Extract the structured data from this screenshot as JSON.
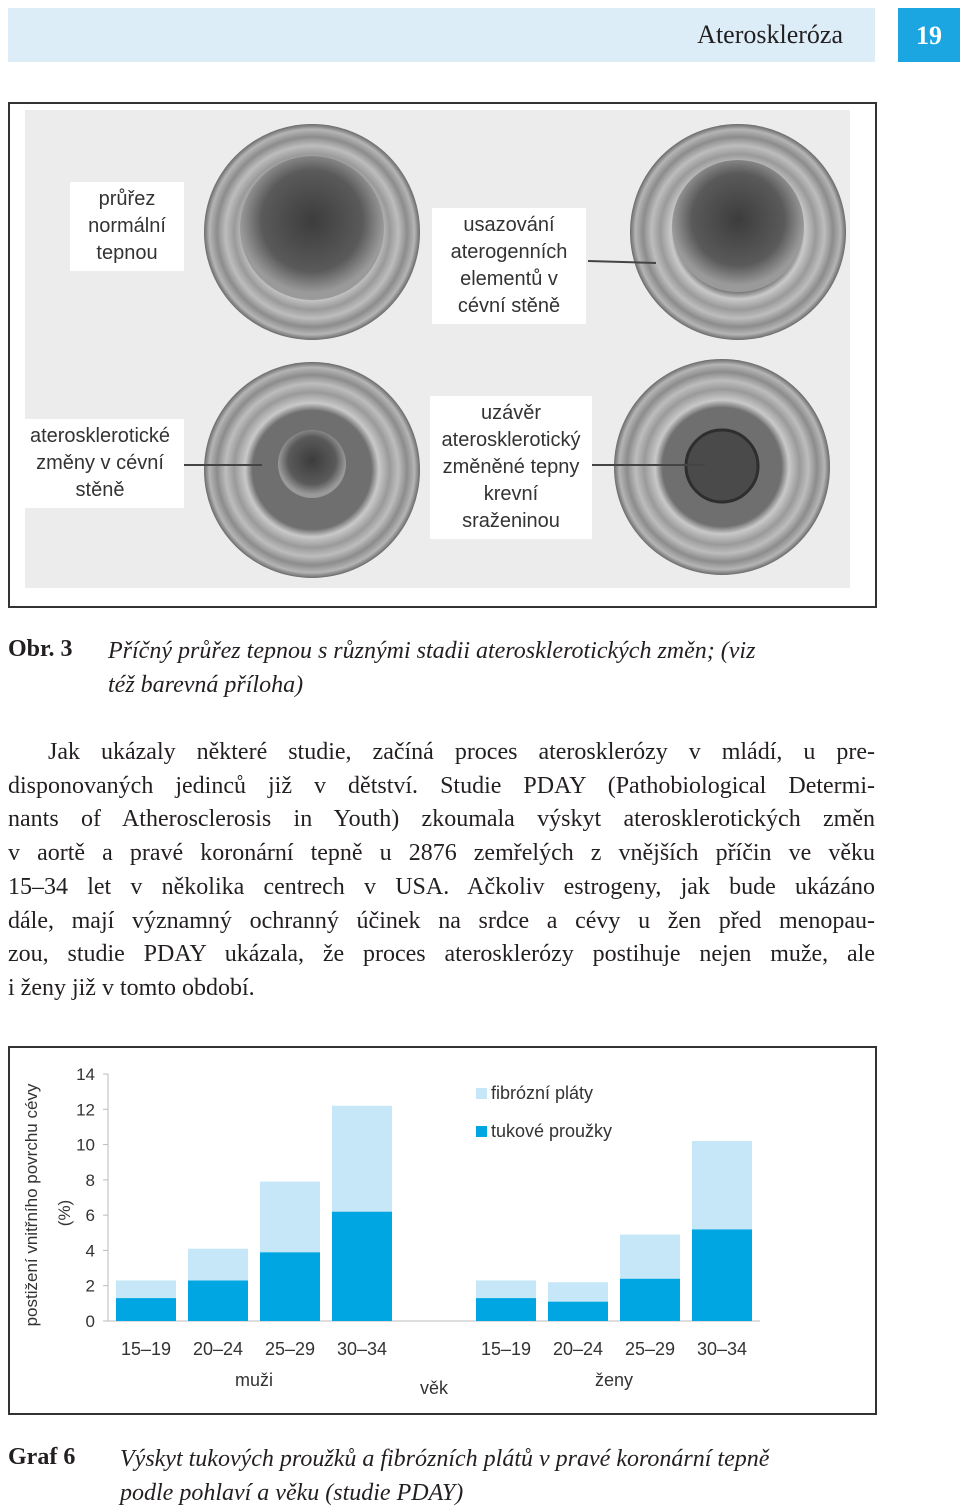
{
  "header": {
    "title": "Ateroskleróza",
    "page_number": "19"
  },
  "figure": {
    "labels": [
      "průřez normální tepnou",
      "usazování aterogenních elementů v cévní stěně",
      "aterosklerotické změny v cévní stěně",
      "uzávěr aterosklerotický změněné tepny krevní sraženinou"
    ],
    "caption_number": "Obr. 3",
    "caption_lines": [
      "Příčný průřez tepnou s různými stadii aterosklerotických změn; (viz",
      "též barevná příloha)"
    ]
  },
  "paragraph": {
    "lines": [
      "Jak ukázaly některé studie, začíná proces aterosklerózy v mládí, u pre-",
      "disponovaných jedinců již v dětství. Studie PDAY (Pathobiological Determi-",
      "nants of Atherosclerosis in Youth) zkoumala výskyt aterosklerotických změn",
      "v aortě a pravé koronární tepně u 2876 zemřelých z vnějších příčin ve věku",
      "15–34 let v několika centrech v USA. Ačkoliv estrogeny, jak bude ukázáno",
      "dále, mají významný ochranný účinek na srdce a cévy u žen před menopau-",
      "zou, studie PDAY ukázala, že proces aterosklerózy postihuje nejen muže, ale",
      "i ženy již v tomto období."
    ]
  },
  "chart_data": {
    "type": "stacked_bar",
    "ylabel": "postižení vnitřního povrchu cévy",
    "ylabel_unit": "(%)",
    "xlabel": "věk",
    "categories": [
      "15–19",
      "20–24",
      "25–29",
      "30–34",
      "15–19",
      "20–24",
      "25–29",
      "30–34"
    ],
    "groups": [
      "muži",
      "ženy"
    ],
    "series": [
      {
        "name": "fibrózní pláty",
        "color": "#c6e7f7",
        "values": [
          1.0,
          1.8,
          4.0,
          6.0,
          1.0,
          1.1,
          2.5,
          5.0
        ]
      },
      {
        "name": "tukové proužky",
        "color": "#00a6e2",
        "values": [
          1.3,
          2.3,
          3.9,
          6.2,
          1.3,
          1.1,
          2.4,
          5.2
        ]
      }
    ],
    "ylim": [
      0,
      14
    ],
    "yticks": [
      0,
      2,
      4,
      6,
      8,
      10,
      12,
      14
    ]
  },
  "chart_caption": {
    "number": "Graf 6",
    "lines": [
      "Výskyt tukových proužků a fibrózních plátů v pravé koronární tepně",
      "podle pohlaví a věku (studie PDAY)"
    ]
  }
}
